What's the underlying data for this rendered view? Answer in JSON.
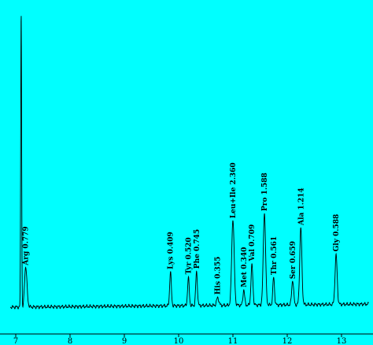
{
  "chart_data": {
    "type": "line",
    "title": "",
    "xlabel": "",
    "ylabel": "",
    "xlim": [
      6.9,
      13.5
    ],
    "ylim": [
      0,
      100
    ],
    "x_ticks": [
      "7",
      "8",
      "9",
      "10",
      "11",
      "12",
      "13"
    ],
    "background_color": "#00ffff",
    "line_color": "#000000",
    "baseline": 2.6,
    "peaks": [
      {
        "label": "Arg 0.779",
        "x": 7.18,
        "height": 14,
        "width": 0.035
      },
      {
        "label": "Lys 0.409",
        "x": 9.85,
        "height": 11,
        "width": 0.022
      },
      {
        "label": "Tyr 0.520",
        "x": 10.18,
        "height": 9,
        "width": 0.022
      },
      {
        "label": "Phe 0.745",
        "x": 10.33,
        "height": 11,
        "width": 0.022
      },
      {
        "label": "His 0.355",
        "x": 10.72,
        "height": 2.5,
        "width": 0.03
      },
      {
        "label": "Leu+Ile 2.360",
        "x": 11.0,
        "height": 28,
        "width": 0.032
      },
      {
        "label": "Met 0.340",
        "x": 11.2,
        "height": 5,
        "width": 0.022
      },
      {
        "label": "Val 0.709",
        "x": 11.35,
        "height": 13,
        "width": 0.025
      },
      {
        "label": "Pro 1.588",
        "x": 11.58,
        "height": 30,
        "width": 0.03
      },
      {
        "label": "Thr 0.561",
        "x": 11.75,
        "height": 9,
        "width": 0.022
      },
      {
        "label": "Ser 0.659",
        "x": 12.1,
        "height": 8,
        "width": 0.025
      },
      {
        "label": "Ala 1.214",
        "x": 12.25,
        "height": 25,
        "width": 0.028
      },
      {
        "label": "Gly 0.588",
        "x": 12.9,
        "height": 16,
        "width": 0.028
      }
    ],
    "solvent_peak": {
      "x": 7.1,
      "height": 96,
      "width": 0.012
    }
  }
}
